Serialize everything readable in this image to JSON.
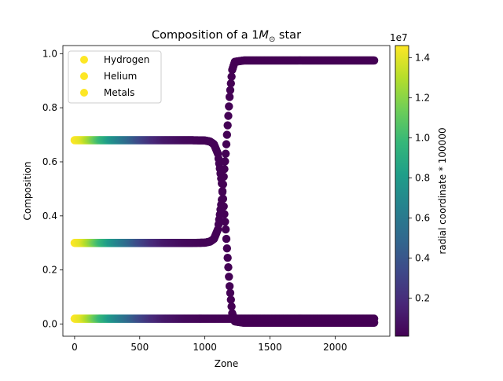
{
  "chart_data": {
    "type": "scatter",
    "title_prefix": "Composition of a 1",
    "title_symbol": "M",
    "title_subscript": "⊙",
    "title_suffix": " star",
    "xlabel": "Zone",
    "ylabel": "Composition",
    "xlim": [
      -90,
      2420
    ],
    "ylim": [
      -0.045,
      1.03
    ],
    "xticks": [
      0,
      500,
      1000,
      1500,
      2000
    ],
    "xtick_labels": [
      "0",
      "500",
      "1000",
      "1500",
      "2000"
    ],
    "yticks": [
      0.0,
      0.2,
      0.4,
      0.6,
      0.8,
      1.0
    ],
    "ytick_labels": [
      "0.0",
      "0.2",
      "0.4",
      "0.6",
      "0.8",
      "1.0"
    ],
    "grid": false,
    "legend_position": "top-left",
    "series": [
      {
        "name": "Hydrogen",
        "points": [
          [
            0,
            0.68
          ],
          [
            300,
            0.68
          ],
          [
            600,
            0.68
          ],
          [
            900,
            0.68
          ],
          [
            1000,
            0.679
          ],
          [
            1040,
            0.675
          ],
          [
            1070,
            0.665
          ],
          [
            1100,
            0.63
          ],
          [
            1130,
            0.52
          ],
          [
            1160,
            0.35
          ],
          [
            1190,
            0.14
          ],
          [
            1210,
            0.04
          ],
          [
            1230,
            0.01
          ],
          [
            1300,
            0.005
          ],
          [
            1600,
            0.005
          ],
          [
            1900,
            0.005
          ],
          [
            2300,
            0.005
          ]
        ]
      },
      {
        "name": "Helium",
        "points": [
          [
            0,
            0.3
          ],
          [
            300,
            0.3
          ],
          [
            600,
            0.3
          ],
          [
            900,
            0.3
          ],
          [
            1000,
            0.301
          ],
          [
            1040,
            0.305
          ],
          [
            1070,
            0.315
          ],
          [
            1100,
            0.35
          ],
          [
            1130,
            0.46
          ],
          [
            1160,
            0.63
          ],
          [
            1190,
            0.84
          ],
          [
            1210,
            0.94
          ],
          [
            1230,
            0.97
          ],
          [
            1300,
            0.975
          ],
          [
            1600,
            0.975
          ],
          [
            1900,
            0.975
          ],
          [
            2300,
            0.975
          ]
        ]
      },
      {
        "name": "Metals",
        "points": [
          [
            0,
            0.02
          ],
          [
            500,
            0.02
          ],
          [
            1000,
            0.02
          ],
          [
            1200,
            0.02
          ],
          [
            1500,
            0.02
          ],
          [
            2000,
            0.02
          ],
          [
            2300,
            0.02
          ]
        ]
      }
    ],
    "color_encoding": {
      "label": "radial coordinate * 100000",
      "exponent_label": "1e7",
      "range": [
        100000,
        14600000
      ],
      "ticks": [
        2000000,
        4000000,
        6000000,
        8000000,
        10000000,
        12000000,
        14000000
      ],
      "tick_labels": [
        "0.2",
        "0.4",
        "0.6",
        "0.8",
        "1.0",
        "1.2",
        "1.4"
      ],
      "colormap": [
        "#440154",
        "#482878",
        "#3e4989",
        "#31688e",
        "#26828e",
        "#1f9e89",
        "#35b779",
        "#6ece58",
        "#b5de2b",
        "#fde725"
      ],
      "profile": [
        [
          0,
          14600000
        ],
        [
          60,
          14000000
        ],
        [
          120,
          12500000
        ],
        [
          200,
          10000000
        ],
        [
          300,
          7500000
        ],
        [
          400,
          5500000
        ],
        [
          500,
          3500000
        ],
        [
          600,
          2000000
        ],
        [
          700,
          1100000
        ],
        [
          850,
          500000
        ],
        [
          1000,
          250000
        ],
        [
          1200,
          120000
        ],
        [
          1500,
          100000
        ],
        [
          2300,
          100000
        ]
      ]
    }
  }
}
